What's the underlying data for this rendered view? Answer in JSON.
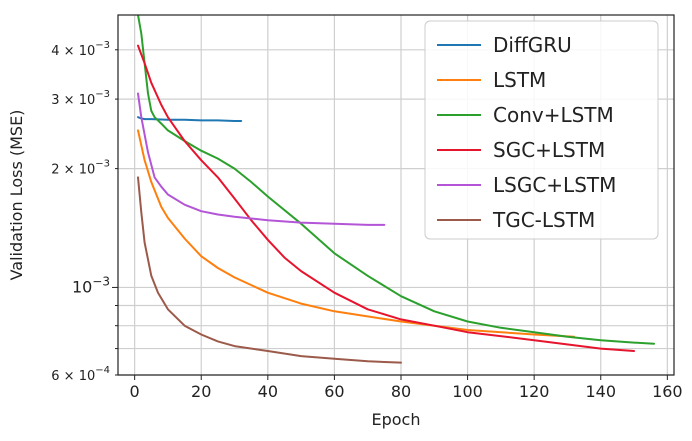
{
  "chart_data": {
    "type": "line",
    "xlabel": "Epoch",
    "ylabel": "Validation Loss (MSE)",
    "xlim": [
      -5,
      162
    ],
    "ylim": [
      0.0006,
      0.0049
    ],
    "yscale": "log",
    "grid": true,
    "legend_position": "top-right",
    "x_ticks": [
      0,
      20,
      40,
      60,
      80,
      100,
      120,
      140,
      160
    ],
    "x_tick_labels": [
      "0",
      "20",
      "40",
      "60",
      "80",
      "100",
      "120",
      "140",
      "160"
    ],
    "y_ticks": [
      {
        "value": 0.0006,
        "mantissa": "6",
        "exp": "−4",
        "major": false
      },
      {
        "value": 0.001,
        "mantissa": "",
        "exp": "−3",
        "major": true
      },
      {
        "value": 0.002,
        "mantissa": "2",
        "exp": "−3",
        "major": false
      },
      {
        "value": 0.003,
        "mantissa": "3",
        "exp": "−3",
        "major": false
      },
      {
        "value": 0.004,
        "mantissa": "4",
        "exp": "−3",
        "major": false
      }
    ],
    "y_minor_grid": [
      0.0007,
      0.0008,
      0.0009
    ],
    "series": [
      {
        "name": "DiffGRU",
        "color": "#1f77b4",
        "x": [
          1,
          2,
          3,
          5,
          10,
          15,
          20,
          25,
          30,
          32
        ],
        "y": [
          0.0027,
          0.00268,
          0.00267,
          0.00267,
          0.00266,
          0.00266,
          0.00265,
          0.00265,
          0.00264,
          0.00264
        ]
      },
      {
        "name": "LSTM",
        "color": "#ff7f0e",
        "x": [
          1,
          3,
          5,
          8,
          10,
          15,
          20,
          25,
          30,
          40,
          50,
          60,
          80,
          100,
          120,
          132
        ],
        "y": [
          0.0025,
          0.0021,
          0.00185,
          0.0016,
          0.0015,
          0.00133,
          0.0012,
          0.00112,
          0.00106,
          0.00097,
          0.00091,
          0.00087,
          0.00082,
          0.00078,
          0.00076,
          0.00075
        ]
      },
      {
        "name": "Conv+LSTM",
        "color": "#2ca02c",
        "x": [
          1,
          2,
          3,
          4,
          5,
          6,
          8,
          10,
          15,
          20,
          25,
          30,
          35,
          40,
          50,
          60,
          70,
          80,
          90,
          100,
          110,
          120,
          130,
          140,
          150,
          156
        ],
        "y": [
          0.0049,
          0.0044,
          0.0037,
          0.0031,
          0.0028,
          0.0027,
          0.0026,
          0.0025,
          0.00235,
          0.00222,
          0.00212,
          0.002,
          0.00185,
          0.0017,
          0.00145,
          0.00122,
          0.00107,
          0.00095,
          0.00087,
          0.00082,
          0.00079,
          0.00077,
          0.00075,
          0.000735,
          0.000725,
          0.00072
        ]
      },
      {
        "name": "SGC+LSTM",
        "color": "#e6142d",
        "x": [
          1,
          3,
          5,
          8,
          10,
          15,
          20,
          25,
          30,
          35,
          40,
          45,
          50,
          60,
          70,
          80,
          90,
          100,
          120,
          140,
          150
        ],
        "y": [
          0.0041,
          0.0037,
          0.0033,
          0.0029,
          0.0027,
          0.00235,
          0.0021,
          0.0019,
          0.00168,
          0.00148,
          0.00132,
          0.00119,
          0.0011,
          0.00097,
          0.00088,
          0.00083,
          0.0008,
          0.00077,
          0.000735,
          0.0007,
          0.00069
        ]
      },
      {
        "name": "LSGC+LSTM",
        "color": "#b355d6",
        "x": [
          1,
          2,
          4,
          6,
          8,
          10,
          15,
          20,
          25,
          30,
          40,
          50,
          60,
          70,
          75
        ],
        "y": [
          0.0031,
          0.0027,
          0.0022,
          0.0019,
          0.0018,
          0.00172,
          0.00162,
          0.00156,
          0.00153,
          0.00151,
          0.00148,
          0.00146,
          0.00145,
          0.00144,
          0.00144
        ]
      },
      {
        "name": "TGC-LSTM",
        "color": "#9c5a4a",
        "x": [
          1,
          2,
          3,
          5,
          7,
          10,
          15,
          20,
          25,
          30,
          40,
          50,
          60,
          70,
          80
        ],
        "y": [
          0.0019,
          0.00155,
          0.0013,
          0.00107,
          0.00097,
          0.00088,
          0.0008,
          0.00076,
          0.00073,
          0.00071,
          0.00069,
          0.00067,
          0.00066,
          0.00065,
          0.000645
        ]
      }
    ]
  }
}
